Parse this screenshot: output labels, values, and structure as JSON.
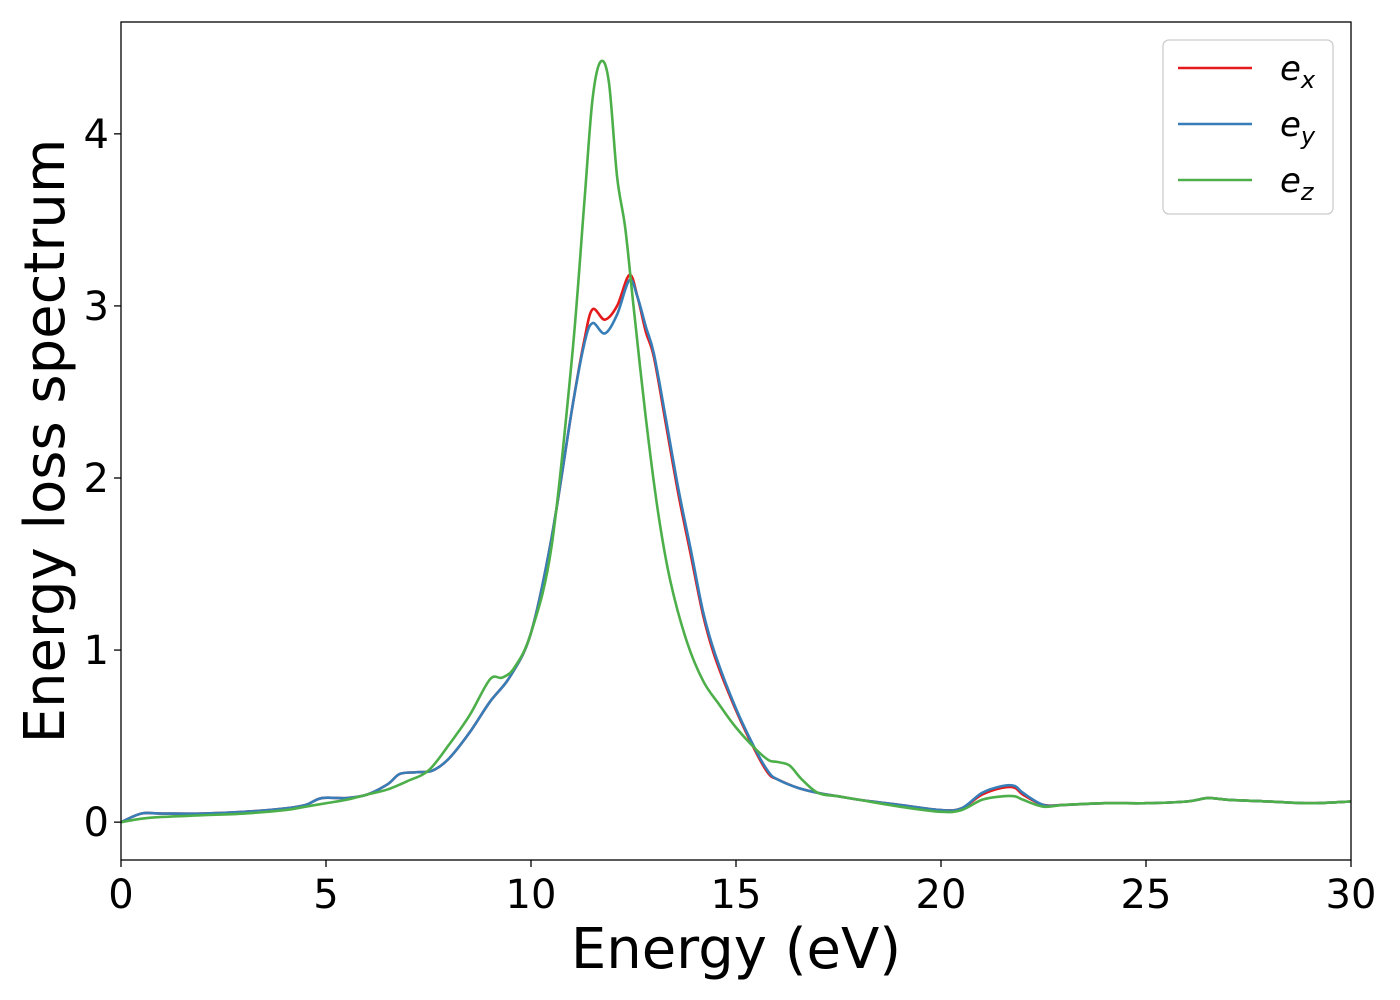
{
  "chart_data": {
    "type": "line",
    "title": "",
    "xlabel": "Energy (eV)",
    "ylabel": "Energy loss spectrum",
    "xlim": [
      0,
      30
    ],
    "ylim": [
      -0.22,
      4.65
    ],
    "xticks": [
      0,
      5,
      10,
      15,
      20,
      25,
      30
    ],
    "yticks": [
      0,
      1,
      2,
      3,
      4
    ],
    "grid": false,
    "legend_position": "top-right",
    "series": [
      {
        "name": "e",
        "subscript": "x",
        "color": "#e41a1c",
        "x": [
          0,
          0.5,
          1,
          2,
          3,
          4,
          4.5,
          4.9,
          5.5,
          6,
          6.5,
          6.8,
          7.2,
          7.6,
          8,
          8.5,
          9,
          9.5,
          10,
          10.5,
          11,
          11.3,
          11.5,
          11.8,
          12.1,
          12.4,
          12.6,
          12.8,
          13,
          13.3,
          13.6,
          13.9,
          14.2,
          14.5,
          15,
          15.5,
          15.8,
          16,
          16.5,
          17,
          17.5,
          18,
          19,
          20,
          20.5,
          21,
          21.5,
          21.8,
          22,
          22.5,
          23,
          24,
          25,
          26,
          26.5,
          27,
          28,
          29,
          30
        ],
        "y": [
          0,
          0.05,
          0.05,
          0.05,
          0.06,
          0.08,
          0.1,
          0.14,
          0.14,
          0.16,
          0.22,
          0.28,
          0.29,
          0.3,
          0.37,
          0.52,
          0.7,
          0.85,
          1.1,
          1.65,
          2.4,
          2.8,
          2.98,
          2.92,
          3.0,
          3.18,
          3.05,
          2.85,
          2.7,
          2.3,
          1.9,
          1.55,
          1.2,
          0.95,
          0.65,
          0.4,
          0.28,
          0.25,
          0.2,
          0.17,
          0.15,
          0.13,
          0.1,
          0.07,
          0.08,
          0.16,
          0.2,
          0.2,
          0.16,
          0.1,
          0.1,
          0.11,
          0.11,
          0.12,
          0.14,
          0.13,
          0.12,
          0.11,
          0.12
        ]
      },
      {
        "name": "e",
        "subscript": "y",
        "color": "#377eb8",
        "x": [
          0,
          0.5,
          1,
          2,
          3,
          4,
          4.5,
          4.9,
          5.5,
          6,
          6.5,
          6.8,
          7.2,
          7.6,
          8,
          8.5,
          9,
          9.5,
          10,
          10.5,
          11,
          11.3,
          11.5,
          11.8,
          12.1,
          12.4,
          12.6,
          12.8,
          13,
          13.3,
          13.6,
          13.9,
          14.2,
          14.5,
          15,
          15.5,
          15.8,
          16,
          16.5,
          17,
          17.5,
          18,
          19,
          20,
          20.5,
          21,
          21.5,
          21.8,
          22,
          22.5,
          23,
          24,
          25,
          26,
          26.5,
          27,
          28,
          29,
          30
        ],
        "y": [
          0,
          0.05,
          0.05,
          0.05,
          0.06,
          0.08,
          0.1,
          0.14,
          0.14,
          0.16,
          0.22,
          0.28,
          0.29,
          0.3,
          0.37,
          0.52,
          0.7,
          0.85,
          1.1,
          1.65,
          2.4,
          2.78,
          2.9,
          2.84,
          2.95,
          3.15,
          3.05,
          2.88,
          2.72,
          2.33,
          1.93,
          1.58,
          1.22,
          0.97,
          0.66,
          0.41,
          0.29,
          0.25,
          0.2,
          0.17,
          0.15,
          0.13,
          0.1,
          0.07,
          0.08,
          0.17,
          0.21,
          0.21,
          0.17,
          0.1,
          0.1,
          0.11,
          0.11,
          0.12,
          0.14,
          0.13,
          0.12,
          0.11,
          0.12
        ]
      },
      {
        "name": "e",
        "subscript": "z",
        "color": "#4daf4a",
        "x": [
          0,
          0.5,
          1,
          2,
          3,
          4,
          4.5,
          5,
          5.5,
          6,
          6.5,
          7,
          7.5,
          8,
          8.5,
          9,
          9.3,
          9.6,
          10,
          10.5,
          11,
          11.3,
          11.5,
          11.7,
          11.9,
          12.1,
          12.3,
          12.5,
          12.8,
          13.1,
          13.4,
          13.8,
          14.2,
          14.6,
          15,
          15.5,
          15.8,
          16,
          16.3,
          16.6,
          17,
          17.5,
          18,
          19,
          20,
          20.5,
          21,
          21.5,
          21.8,
          22,
          22.5,
          23,
          24,
          25,
          26,
          26.5,
          27,
          28,
          29,
          30
        ],
        "y": [
          0,
          0.02,
          0.03,
          0.04,
          0.05,
          0.07,
          0.09,
          0.11,
          0.13,
          0.16,
          0.19,
          0.24,
          0.3,
          0.45,
          0.62,
          0.83,
          0.84,
          0.9,
          1.1,
          1.6,
          2.7,
          3.6,
          4.2,
          4.42,
          4.3,
          3.75,
          3.45,
          3.0,
          2.35,
          1.8,
          1.4,
          1.05,
          0.82,
          0.68,
          0.55,
          0.42,
          0.36,
          0.35,
          0.33,
          0.25,
          0.17,
          0.15,
          0.13,
          0.09,
          0.06,
          0.07,
          0.13,
          0.15,
          0.15,
          0.13,
          0.09,
          0.1,
          0.11,
          0.11,
          0.12,
          0.14,
          0.13,
          0.12,
          0.11,
          0.12
        ]
      }
    ]
  }
}
